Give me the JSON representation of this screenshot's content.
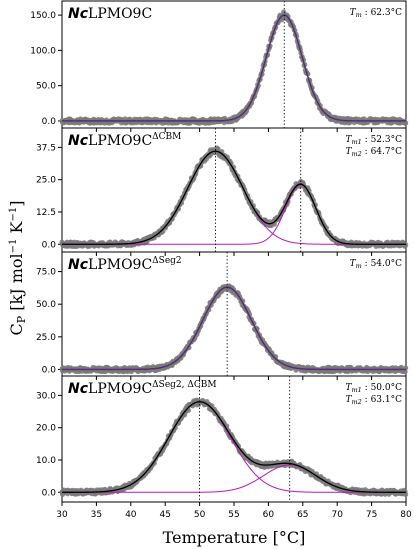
{
  "figure": {
    "xlabel": "Temperature [°C]",
    "ylabel_main": "C",
    "ylabel_sub": "P",
    "ylabel_rest": " [kJ mol",
    "ylabel_sup1": "−1",
    "ylabel_mid": " K",
    "ylabel_sup2": "−1",
    "ylabel_end": "]"
  },
  "colors": {
    "raw_data": "#7a7a7a",
    "total_fit": "#000000",
    "component_fit": "#b31bb3",
    "single_fit": "#5b2a86"
  },
  "chart_data": [
    {
      "type": "line",
      "panel_title_italic": "Nc",
      "panel_title_main": "LPMO9C",
      "panel_title_sup": "",
      "tm_labels": [
        {
          "prefix": "T",
          "sub": "m",
          "text": " : 62.3°C"
        }
      ],
      "xlim": [
        30,
        80
      ],
      "ylim": [
        -10,
        170
      ],
      "yticks": [
        "0.0",
        "50.0",
        "100.0",
        "150.0"
      ],
      "ytick_values": [
        0,
        50,
        100,
        150
      ],
      "peaks": [
        {
          "tm": 62.3,
          "height": 150,
          "width": 2.6
        }
      ],
      "xticks": [
        "30",
        "35",
        "40",
        "45",
        "50",
        "55",
        "60",
        "65",
        "70",
        "75",
        "80"
      ],
      "xtick_values": [
        30,
        35,
        40,
        45,
        50,
        55,
        60,
        65,
        70,
        75,
        80
      ]
    },
    {
      "type": "line",
      "panel_title_italic": "Nc",
      "panel_title_main": "LPMO9C",
      "panel_title_sup": "ΔCBM",
      "tm_labels": [
        {
          "prefix": "T",
          "sub": "m1",
          "text": " : 52.3°C"
        },
        {
          "prefix": "T",
          "sub": "m2",
          "text": " : 64.7°C"
        }
      ],
      "xlim": [
        30,
        80
      ],
      "ylim": [
        -3,
        45
      ],
      "yticks": [
        "0.0",
        "12.5",
        "25.0",
        "37.5"
      ],
      "ytick_values": [
        0,
        12.5,
        25,
        37.5
      ],
      "peaks": [
        {
          "tm": 52.3,
          "height": 36,
          "width": 4.0
        },
        {
          "tm": 64.7,
          "height": 23,
          "width": 2.2
        }
      ],
      "xticks": [
        "30",
        "35",
        "40",
        "45",
        "50",
        "55",
        "60",
        "65",
        "70",
        "75",
        "80"
      ],
      "xtick_values": [
        30,
        35,
        40,
        45,
        50,
        55,
        60,
        65,
        70,
        75,
        80
      ]
    },
    {
      "type": "line",
      "panel_title_italic": "Nc",
      "panel_title_main": "LPMO9C",
      "panel_title_sup": "ΔSeg2",
      "tm_labels": [
        {
          "prefix": "T",
          "sub": "m",
          "text": " : 54.0°C"
        }
      ],
      "xlim": [
        30,
        80
      ],
      "ylim": [
        -5,
        90
      ],
      "yticks": [
        "0.0",
        "25.0",
        "50.0",
        "75.0"
      ],
      "ytick_values": [
        0,
        25,
        50,
        75
      ],
      "peaks": [
        {
          "tm": 54.0,
          "height": 63,
          "width": 3.5
        }
      ],
      "xticks": [
        "30",
        "35",
        "40",
        "45",
        "50",
        "55",
        "60",
        "65",
        "70",
        "75",
        "80"
      ],
      "xtick_values": [
        30,
        35,
        40,
        45,
        50,
        55,
        60,
        65,
        70,
        75,
        80
      ]
    },
    {
      "type": "line",
      "panel_title_italic": "Nc",
      "panel_title_main": "LPMO9C",
      "panel_title_sup": "ΔSeg2, ΔCBM",
      "tm_labels": [
        {
          "prefix": "T",
          "sub": "m1",
          "text": " : 50.0°C"
        },
        {
          "prefix": "T",
          "sub": "m2",
          "text": " : 63.1°C"
        }
      ],
      "xlim": [
        30,
        80
      ],
      "ylim": [
        -3,
        36
      ],
      "yticks": [
        "0.0",
        "10.0",
        "20.0",
        "30.0"
      ],
      "ytick_values": [
        0,
        10,
        20,
        30
      ],
      "peaks": [
        {
          "tm": 50.0,
          "height": 28,
          "width": 4.5
        },
        {
          "tm": 63.1,
          "height": 8.5,
          "width": 3.8
        }
      ],
      "xticks": [
        "30",
        "35",
        "40",
        "45",
        "50",
        "55",
        "60",
        "65",
        "70",
        "75",
        "80"
      ],
      "xtick_values": [
        30,
        35,
        40,
        45,
        50,
        55,
        60,
        65,
        70,
        75,
        80
      ]
    }
  ]
}
